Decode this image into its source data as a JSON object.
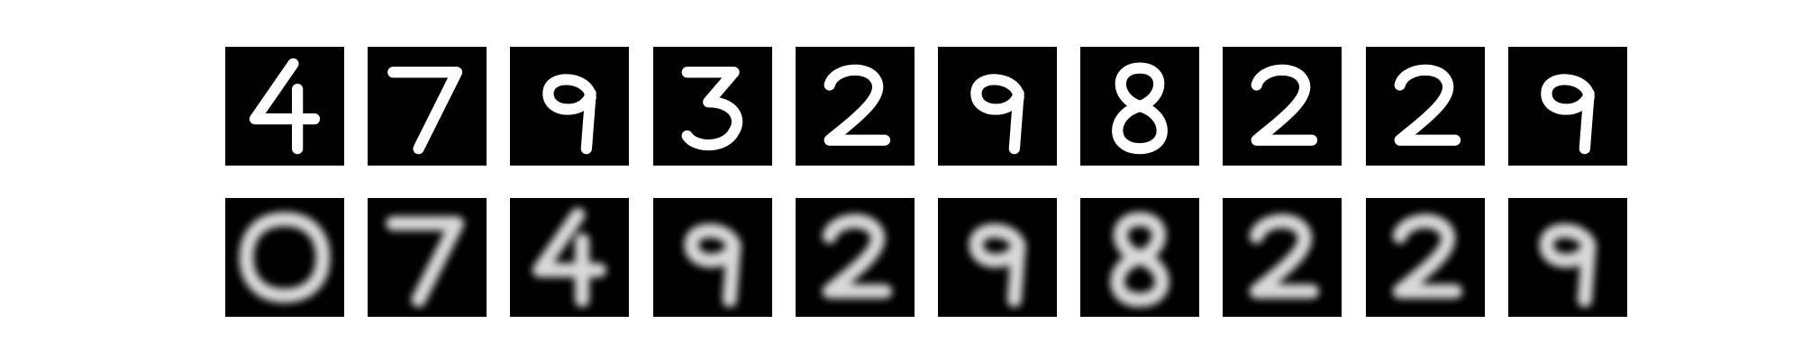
{
  "figure": {
    "background": "#ffffff",
    "tile_color": "#000000",
    "stroke_color": "#ffffff"
  },
  "rows": [
    {
      "kind": "original",
      "digits": [
        "4",
        "7",
        "9",
        "3",
        "2",
        "9",
        "8",
        "2",
        "2",
        "9"
      ]
    },
    {
      "kind": "reconstruction",
      "digits": [
        "0",
        "7",
        "4",
        "9",
        "2",
        "9",
        "8",
        "2",
        "2",
        "9"
      ]
    }
  ]
}
